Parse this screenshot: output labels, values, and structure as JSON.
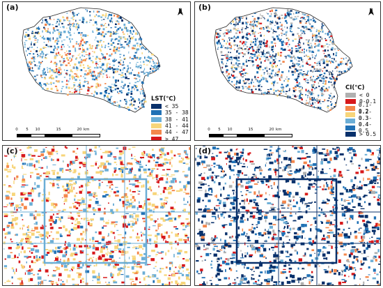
{
  "panels": {
    "a": {
      "label": "(a)"
    },
    "b": {
      "label": "(b)"
    },
    "c": {
      "label": "(c)"
    },
    "d": {
      "label": "(d)"
    }
  },
  "north": "N",
  "scale": {
    "ticks": [
      "0",
      "5",
      "10",
      "15",
      "20"
    ],
    "unit": "km"
  },
  "legend_lst": {
    "title": "LST(℃)",
    "classes": [
      {
        "label": "< 35",
        "color": "#08306b"
      },
      {
        "label": "35 - 38",
        "color": "#2171b5"
      },
      {
        "label": "38 - 41",
        "color": "#6baed6"
      },
      {
        "label": "41 - 44",
        "color": "#f7d57a"
      },
      {
        "label": "44 - 47",
        "color": "#f4874b"
      },
      {
        "label": "> 47",
        "color": "#d7191c"
      }
    ]
  },
  "legend_ci": {
    "title": "CI(℃)",
    "classes": [
      {
        "label": "< 0",
        "color": "#b0b0b0"
      },
      {
        "label": "0-0.1",
        "color": "#d7191c"
      },
      {
        "label": "0.1-0.2",
        "color": "#f4874b"
      },
      {
        "label": "0.2-0.3",
        "color": "#f7d57a"
      },
      {
        "label": "0.3-0.4",
        "color": "#6baed6"
      },
      {
        "label": "0.4-0.5",
        "color": "#2171b5"
      },
      {
        "label": "> 0.5",
        "color": "#08306b"
      }
    ]
  }
}
